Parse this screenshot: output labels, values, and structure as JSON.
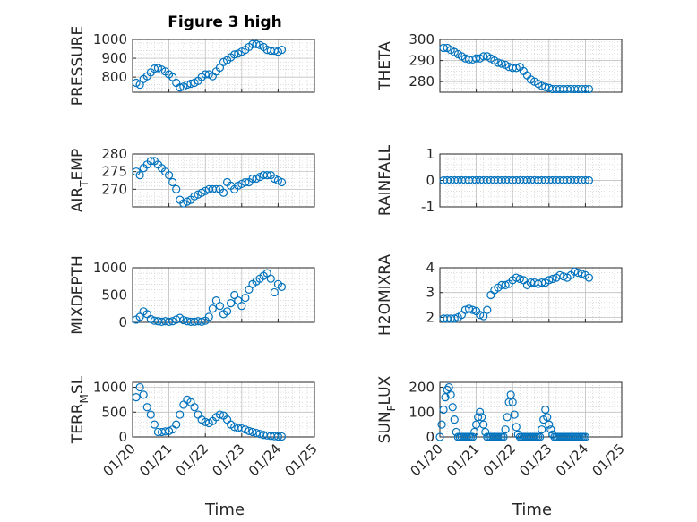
{
  "figure_title": "Figure 3 high",
  "colors": {
    "marker": "#0072BD",
    "axes": "#262626",
    "grid": "#b8b8b8"
  },
  "chart_data": [
    {
      "type": "scatter",
      "ylabel": "PRESSURE",
      "title": "Figure 3 high",
      "xlim": [
        0,
        5
      ],
      "ylim": [
        720,
        1000
      ],
      "yticks": [
        800,
        900,
        1000
      ],
      "x": [
        0.1,
        0.2,
        0.3,
        0.4,
        0.5,
        0.6,
        0.7,
        0.8,
        0.9,
        1.0,
        1.1,
        1.2,
        1.3,
        1.4,
        1.5,
        1.6,
        1.7,
        1.8,
        1.9,
        2.0,
        2.1,
        2.2,
        2.3,
        2.4,
        2.5,
        2.6,
        2.7,
        2.8,
        2.9,
        3.0,
        3.1,
        3.2,
        3.3,
        3.4,
        3.5,
        3.6,
        3.7,
        3.8,
        3.9,
        4.0,
        4.1
      ],
      "y": [
        770,
        760,
        790,
        805,
        825,
        845,
        848,
        840,
        830,
        815,
        800,
        770,
        745,
        750,
        760,
        765,
        770,
        780,
        800,
        815,
        815,
        805,
        830,
        850,
        880,
        890,
        905,
        920,
        925,
        935,
        945,
        960,
        975,
        975,
        970,
        960,
        945,
        940,
        940,
        935,
        945
      ]
    },
    {
      "type": "scatter",
      "ylabel": "THETA",
      "xlim": [
        0,
        5
      ],
      "ylim": [
        275,
        300
      ],
      "yticks": [
        280,
        290,
        300
      ],
      "x": [
        0.1,
        0.2,
        0.3,
        0.4,
        0.5,
        0.6,
        0.7,
        0.8,
        0.9,
        1.0,
        1.1,
        1.2,
        1.3,
        1.4,
        1.5,
        1.6,
        1.7,
        1.8,
        1.9,
        2.0,
        2.1,
        2.2,
        2.3,
        2.4,
        2.5,
        2.6,
        2.7,
        2.8,
        2.9,
        3.0,
        3.1,
        3.2,
        3.3,
        3.4,
        3.5,
        3.6,
        3.7,
        3.8,
        3.9,
        4.0,
        4.1
      ],
      "y": [
        296,
        296,
        295,
        294,
        293,
        292,
        291,
        290.5,
        290.5,
        291,
        291,
        292,
        292,
        291,
        290,
        289,
        288.5,
        288,
        287,
        286.5,
        286.5,
        287,
        285,
        283,
        281,
        280,
        279,
        278,
        277.5,
        277,
        276.5,
        276.5,
        276.5,
        276.5,
        276.5,
        276.5,
        276.5,
        276.5,
        276.5,
        276.5,
        276.5
      ]
    },
    {
      "type": "scatter",
      "ylabel": "AIR_TEMP",
      "ylabel_main": "AIR",
      "ylabel_sub": "T",
      "ylabel_tail": "EMP",
      "xlim": [
        0,
        5
      ],
      "ylim": [
        265,
        280
      ],
      "yticks": [
        270,
        275,
        280
      ],
      "x": [
        0.1,
        0.2,
        0.3,
        0.4,
        0.5,
        0.6,
        0.7,
        0.8,
        0.9,
        1.0,
        1.1,
        1.2,
        1.3,
        1.4,
        1.5,
        1.6,
        1.7,
        1.8,
        1.9,
        2.0,
        2.1,
        2.2,
        2.3,
        2.4,
        2.5,
        2.6,
        2.7,
        2.8,
        2.9,
        3.0,
        3.1,
        3.2,
        3.3,
        3.4,
        3.5,
        3.6,
        3.7,
        3.8,
        3.9,
        4.0,
        4.1
      ],
      "y": [
        275,
        274,
        276,
        277,
        278,
        278,
        277,
        276,
        275,
        274,
        272,
        270,
        267,
        266,
        266.5,
        267,
        268,
        268.5,
        269,
        269.5,
        270,
        270,
        270,
        270,
        269,
        272,
        271,
        270,
        271,
        271.5,
        272,
        272,
        273,
        273,
        273.5,
        274,
        274,
        274,
        273,
        272.5,
        272
      ]
    },
    {
      "type": "scatter",
      "ylabel": "RAINFALL",
      "xlim": [
        0,
        5
      ],
      "ylim": [
        -1,
        1
      ],
      "yticks": [
        -1,
        0,
        1
      ],
      "x": [
        0.1,
        0.2,
        0.3,
        0.4,
        0.5,
        0.6,
        0.7,
        0.8,
        0.9,
        1.0,
        1.1,
        1.2,
        1.3,
        1.4,
        1.5,
        1.6,
        1.7,
        1.8,
        1.9,
        2.0,
        2.1,
        2.2,
        2.3,
        2.4,
        2.5,
        2.6,
        2.7,
        2.8,
        2.9,
        3.0,
        3.1,
        3.2,
        3.3,
        3.4,
        3.5,
        3.6,
        3.7,
        3.8,
        3.9,
        4.0,
        4.1
      ],
      "y": [
        0,
        0,
        0,
        0,
        0,
        0,
        0,
        0,
        0,
        0,
        0,
        0,
        0,
        0,
        0,
        0,
        0,
        0,
        0,
        0,
        0,
        0,
        0,
        0,
        0,
        0,
        0,
        0,
        0,
        0,
        0,
        0,
        0,
        0,
        0,
        0,
        0,
        0,
        0,
        0,
        0
      ]
    },
    {
      "type": "scatter",
      "ylabel": "MIXDEPTH",
      "xlim": [
        0,
        5
      ],
      "ylim": [
        0,
        1000
      ],
      "yticks": [
        0,
        500,
        1000
      ],
      "x": [
        0.1,
        0.2,
        0.3,
        0.4,
        0.5,
        0.6,
        0.7,
        0.8,
        0.9,
        1.0,
        1.1,
        1.2,
        1.3,
        1.4,
        1.5,
        1.6,
        1.7,
        1.8,
        1.9,
        2.0,
        2.1,
        2.2,
        2.3,
        2.4,
        2.5,
        2.6,
        2.7,
        2.8,
        2.9,
        3.0,
        3.1,
        3.2,
        3.3,
        3.4,
        3.5,
        3.6,
        3.7,
        3.8,
        3.9,
        4.0,
        4.1
      ],
      "y": [
        50,
        100,
        200,
        150,
        60,
        30,
        20,
        10,
        20,
        10,
        20,
        50,
        80,
        40,
        20,
        10,
        10,
        20,
        10,
        30,
        100,
        250,
        400,
        300,
        150,
        200,
        350,
        500,
        400,
        300,
        450,
        600,
        700,
        750,
        800,
        850,
        900,
        800,
        550,
        700,
        650
      ]
    },
    {
      "type": "scatter",
      "ylabel": "H2OMIXRA",
      "xlim": [
        0,
        5
      ],
      "ylim": [
        1.8,
        4
      ],
      "yticks": [
        2,
        3,
        4
      ],
      "x": [
        0.1,
        0.2,
        0.3,
        0.4,
        0.5,
        0.6,
        0.7,
        0.8,
        0.9,
        1.0,
        1.1,
        1.2,
        1.3,
        1.4,
        1.5,
        1.6,
        1.7,
        1.8,
        1.9,
        2.0,
        2.1,
        2.2,
        2.3,
        2.4,
        2.5,
        2.6,
        2.7,
        2.8,
        2.9,
        3.0,
        3.1,
        3.2,
        3.3,
        3.4,
        3.5,
        3.6,
        3.7,
        3.8,
        3.9,
        4.0,
        4.1
      ],
      "y": [
        1.95,
        1.95,
        1.95,
        1.95,
        2.0,
        2.1,
        2.3,
        2.35,
        2.3,
        2.25,
        2.1,
        2.05,
        2.3,
        2.9,
        3.1,
        3.2,
        3.3,
        3.3,
        3.35,
        3.5,
        3.6,
        3.55,
        3.5,
        3.3,
        3.4,
        3.4,
        3.35,
        3.4,
        3.4,
        3.5,
        3.55,
        3.6,
        3.7,
        3.65,
        3.6,
        3.7,
        3.85,
        3.8,
        3.75,
        3.7,
        3.6
      ]
    },
    {
      "type": "scatter",
      "ylabel": "TERR_MSL",
      "ylabel_main": "TERR",
      "ylabel_sub": "M",
      "ylabel_tail": "SL",
      "xlim": [
        0,
        5
      ],
      "ylim": [
        0,
        1100
      ],
      "yticks": [
        0,
        500,
        1000
      ],
      "x": [
        0.1,
        0.2,
        0.3,
        0.4,
        0.5,
        0.6,
        0.7,
        0.8,
        0.9,
        1.0,
        1.1,
        1.2,
        1.3,
        1.4,
        1.5,
        1.6,
        1.7,
        1.8,
        1.9,
        2.0,
        2.1,
        2.2,
        2.3,
        2.4,
        2.5,
        2.6,
        2.7,
        2.8,
        2.9,
        3.0,
        3.1,
        3.2,
        3.3,
        3.4,
        3.5,
        3.6,
        3.7,
        3.8,
        3.9,
        4.0,
        4.1
      ],
      "y": [
        800,
        1000,
        850,
        600,
        450,
        250,
        100,
        100,
        110,
        120,
        150,
        250,
        450,
        650,
        750,
        700,
        600,
        450,
        350,
        300,
        280,
        320,
        400,
        450,
        430,
        350,
        250,
        200,
        180,
        170,
        150,
        120,
        100,
        80,
        60,
        40,
        30,
        20,
        15,
        10,
        10
      ]
    },
    {
      "type": "scatter",
      "ylabel": "SUN_FLUX",
      "ylabel_main": "SUN",
      "ylabel_sub": "F",
      "ylabel_tail": "LUX",
      "xlim": [
        0,
        5
      ],
      "ylim": [
        0,
        220
      ],
      "yticks": [
        0,
        100,
        200
      ],
      "x": [
        0.0,
        0.05,
        0.1,
        0.15,
        0.2,
        0.25,
        0.3,
        0.35,
        0.4,
        0.45,
        0.5,
        0.55,
        0.6,
        0.65,
        0.7,
        0.75,
        0.8,
        0.85,
        0.9,
        0.95,
        1.0,
        1.05,
        1.1,
        1.15,
        1.2,
        1.25,
        1.3,
        1.35,
        1.4,
        1.45,
        1.5,
        1.55,
        1.6,
        1.65,
        1.7,
        1.75,
        1.8,
        1.85,
        1.9,
        1.95,
        2.0,
        2.05,
        2.1,
        2.15,
        2.2,
        2.25,
        2.3,
        2.35,
        2.4,
        2.45,
        2.5,
        2.55,
        2.6,
        2.65,
        2.7,
        2.75,
        2.8,
        2.85,
        2.9,
        2.95,
        3.0,
        3.05,
        3.1,
        3.15,
        3.2,
        3.25,
        3.3,
        3.35,
        3.4,
        3.45,
        3.5,
        3.55,
        3.6,
        3.65,
        3.7,
        3.75,
        3.8,
        3.85,
        3.9,
        3.95,
        4.0
      ],
      "y": [
        0,
        50,
        110,
        160,
        190,
        200,
        170,
        120,
        70,
        20,
        0,
        0,
        0,
        0,
        0,
        0,
        0,
        0,
        0,
        20,
        50,
        80,
        100,
        80,
        50,
        20,
        0,
        0,
        0,
        0,
        0,
        0,
        0,
        0,
        0,
        0,
        30,
        80,
        140,
        170,
        140,
        90,
        40,
        10,
        0,
        0,
        0,
        0,
        0,
        0,
        0,
        0,
        0,
        0,
        0,
        0,
        30,
        70,
        110,
        80,
        50,
        30,
        10,
        0,
        0,
        0,
        0,
        0,
        0,
        0,
        0,
        0,
        0,
        0,
        0,
        0,
        0,
        0,
        0,
        0,
        0
      ]
    }
  ],
  "shared_x": {
    "xlabel": "Time",
    "tick_values": [
      0,
      1,
      2,
      3,
      4,
      5
    ],
    "tick_labels": [
      "01/20",
      "01/21",
      "01/22",
      "01/23",
      "01/24",
      "01/25"
    ]
  }
}
